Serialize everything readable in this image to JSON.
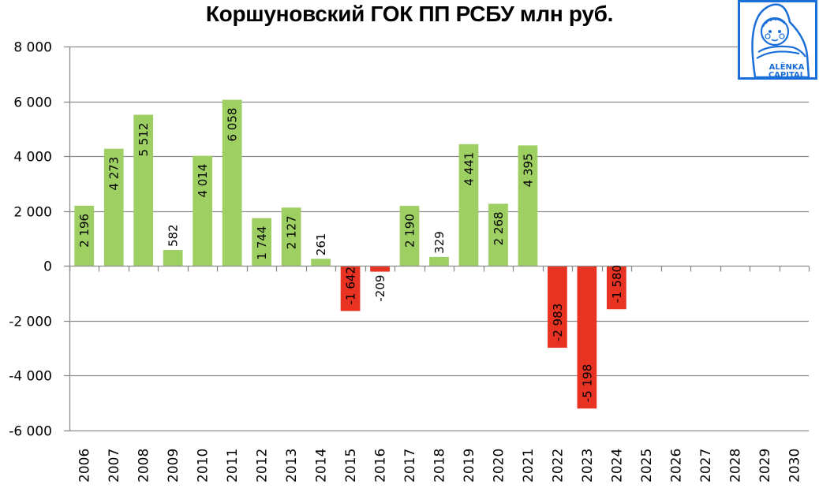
{
  "title": "Коршуновский ГОК ПП РСБУ млн руб.",
  "logo": {
    "line1": "ALËNKA",
    "line2": "CAPITAL",
    "color": "#1a6fd8"
  },
  "colors": {
    "positive": "#9ecf63",
    "negative": "#e83323",
    "grid": "#8c8c8c",
    "axis": "#8c8c8c"
  },
  "chart_data": {
    "type": "bar",
    "title": "Коршуновский ГОК ПП РСБУ млн руб.",
    "xlabel": "",
    "ylabel": "",
    "ylim": [
      -6000,
      8000
    ],
    "yticks": [
      8000,
      6000,
      4000,
      2000,
      0,
      -2000,
      -4000,
      -6000
    ],
    "ytick_labels": [
      "8 000",
      "6 000",
      "4 000",
      "2 000",
      "0",
      "-2 000",
      "-4 000",
      "-6 000"
    ],
    "grid": true,
    "legend": null,
    "categories": [
      "2006",
      "2007",
      "2008",
      "2009",
      "2010",
      "2011",
      "2012",
      "2013",
      "2014",
      "2015",
      "2016",
      "2017",
      "2018",
      "2019",
      "2020",
      "2021",
      "2022",
      "2023",
      "2024",
      "2025",
      "2026",
      "2027",
      "2028",
      "2029",
      "2030"
    ],
    "values": [
      2196,
      4273,
      5512,
      582,
      4014,
      6058,
      1744,
      2127,
      261,
      -1642,
      -209,
      2190,
      329,
      4441,
      2268,
      4395,
      -2983,
      -5198,
      -1580,
      null,
      null,
      null,
      null,
      null,
      null
    ],
    "value_labels": [
      "2 196",
      "4 273",
      "5 512",
      "582",
      "4 014",
      "6 058",
      "1 744",
      "2 127",
      "261",
      "-1 642",
      "-209",
      "2 190",
      "329",
      "4 441",
      "2 268",
      "4 395",
      "-2 983",
      "-5 198",
      "-1 580",
      "",
      "",
      "",
      "",
      "",
      ""
    ]
  }
}
